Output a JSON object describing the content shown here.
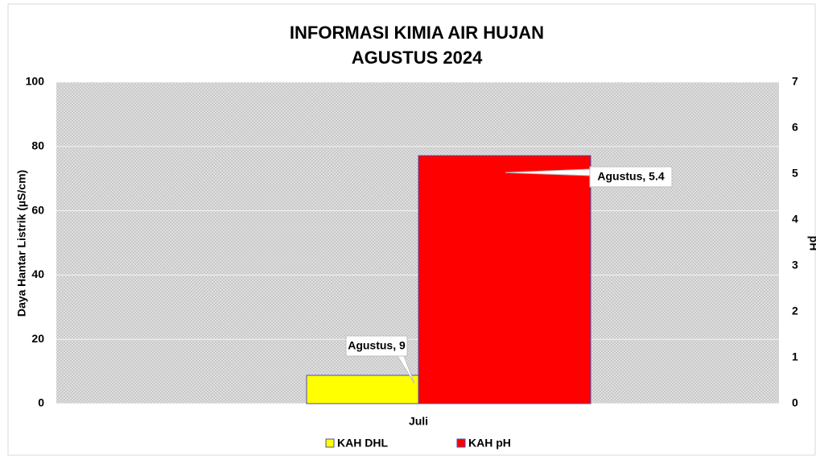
{
  "chart_data": {
    "type": "bar",
    "title": [
      "INFORMASI  KIMIA AIR HUJAN",
      "AGUSTUS 2024"
    ],
    "ylabel": "Daya Hantar Listrik (µS/cm)",
    "y2label": "pH",
    "categories": [
      "Juli"
    ],
    "series": [
      {
        "name": "KAH DHL",
        "color": "#ffff00",
        "values": [
          8.8
        ],
        "value_labels": [
          "Agustus, 9"
        ]
      },
      {
        "name": "KAH pH",
        "color": "#ff0000",
        "axis": "y2",
        "values": [
          5.4
        ],
        "value_labels": [
          "Agustus, 5.4"
        ]
      }
    ],
    "ylim": [
      0,
      100
    ],
    "yticks": [
      0,
      20,
      40,
      60,
      80,
      100
    ],
    "y2lim": [
      0,
      7
    ],
    "y2ticks": [
      0,
      1,
      2,
      3,
      4,
      5,
      6,
      7
    ],
    "grid": true
  }
}
